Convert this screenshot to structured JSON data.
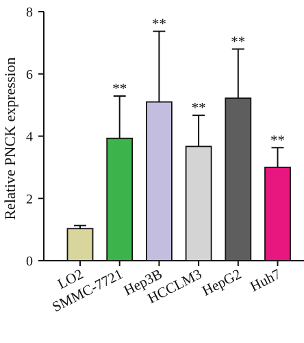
{
  "chart_data": {
    "type": "bar",
    "title": "",
    "xlabel": "",
    "ylabel": "Relative PNCK expression",
    "ylim": [
      0,
      8
    ],
    "yticks": [
      0,
      2,
      4,
      6,
      8
    ],
    "grid": false,
    "legend": "none",
    "categories": [
      "LO2",
      "SMMC-7721",
      "Hep3B",
      "HCCLM3",
      "HepG2",
      "Huh7"
    ],
    "values": [
      1.03,
      3.93,
      5.1,
      3.67,
      5.22,
      3.0
    ],
    "error_upper": [
      0.1,
      1.36,
      2.27,
      1.0,
      1.58,
      0.63
    ],
    "significance": [
      "",
      "**",
      "**",
      "**",
      "**",
      "**"
    ],
    "colors": [
      "#d8d69c",
      "#3cb44b",
      "#c3bedf",
      "#d4d4d4",
      "#5e5e5e",
      "#e8177f"
    ]
  }
}
